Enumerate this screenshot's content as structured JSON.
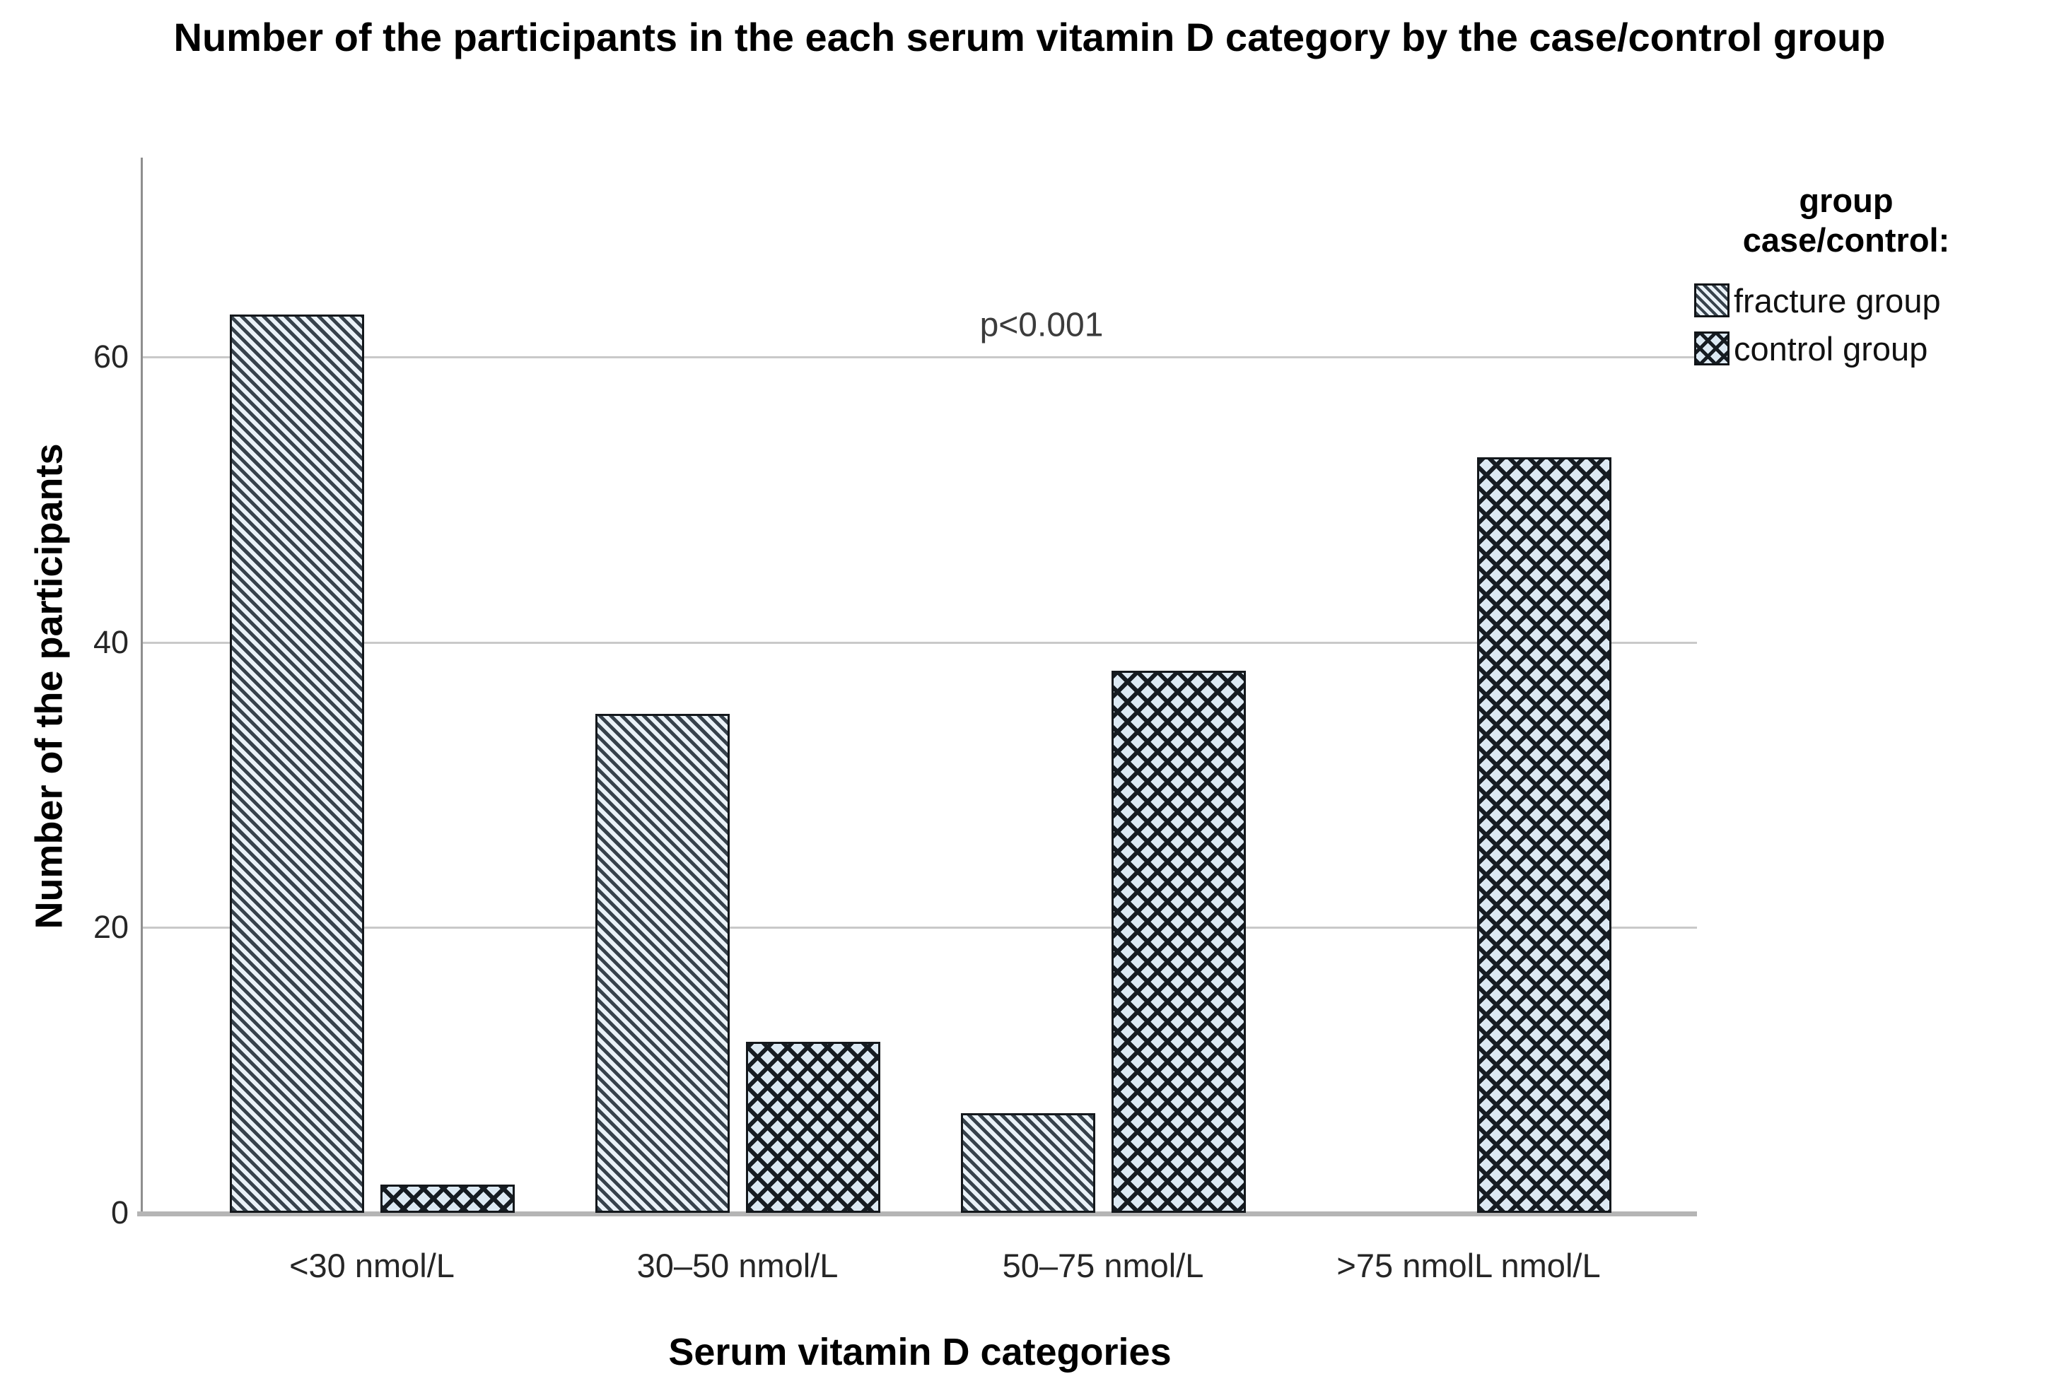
{
  "chart_data": {
    "type": "bar",
    "title": "Number of the participants in the each serum vitamin D category by the case/control group",
    "xlabel": "Serum vitamin D categories",
    "ylabel": "Number of the participants",
    "categories": [
      "<30 nmol/L",
      "30–50 nmol/L",
      "50–75 nmol/L",
      ">75 nmolL nmol/L"
    ],
    "series": [
      {
        "name": "fracture group",
        "pattern": "diagonal-hatch",
        "values": [
          63,
          35,
          7,
          0
        ]
      },
      {
        "name": "control group",
        "pattern": "cross-hatch",
        "values": [
          2,
          12,
          38,
          53
        ]
      }
    ],
    "yticks": [
      0,
      20,
      40,
      60
    ],
    "ylim": [
      0,
      74
    ],
    "grid": "horizontal-gridlines",
    "annotation": "p<0.001",
    "legend": {
      "title_line1": "group",
      "title_line2": "case/control:",
      "position": "right"
    },
    "colors": {
      "hatch_dark": "#37424c",
      "hatch_light_fill": "#eaf2f8",
      "crosshatch_dark": "#161c22",
      "crosshatch_light_fill": "#dce9f3",
      "bar_border": "#14181c",
      "gridline": "#c9c9c9",
      "axis_line": "#8f8f8f",
      "baseline": "#b5b5b5",
      "text": "#000000"
    }
  }
}
